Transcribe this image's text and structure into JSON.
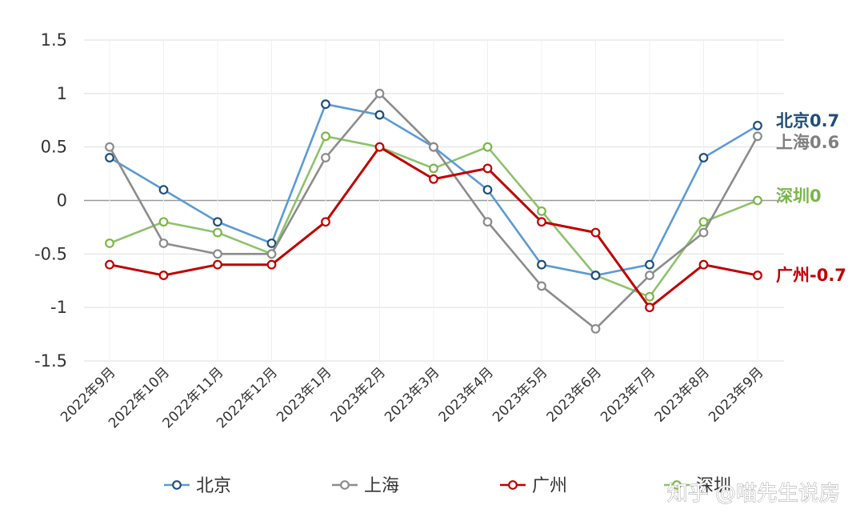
{
  "chart_data": {
    "type": "line",
    "categories": [
      "2022年9月",
      "2022年10月",
      "2022年11月",
      "2022年12月",
      "2023年1月",
      "2023年2月",
      "2023年3月",
      "2023年4月",
      "2023年5月",
      "2023年6月",
      "2023年7月",
      "2023年8月",
      "2023年9月"
    ],
    "ylim": [
      -1.5,
      1.5
    ],
    "yticks": [
      {
        "value": 1.5,
        "label": "1.5"
      },
      {
        "value": 1,
        "label": "1"
      },
      {
        "value": 0.5,
        "label": "0.5"
      },
      {
        "value": 0,
        "label": "0"
      },
      {
        "value": -0.5,
        "label": "-0.5"
      },
      {
        "value": -1,
        "label": "-1"
      },
      {
        "value": -1.5,
        "label": "-1.5"
      }
    ],
    "grid": true,
    "legend_position": "bottom",
    "series": [
      {
        "name": "北京",
        "color": "#5b9bd5",
        "marker_color": "#1f4e79",
        "end_label": "北京0.7",
        "end_label_color": "#1f4e79",
        "values": [
          0.4,
          0.1,
          -0.2,
          -0.4,
          0.9,
          0.8,
          0.5,
          0.1,
          -0.6,
          -0.7,
          -0.6,
          0.4,
          0.7
        ]
      },
      {
        "name": "上海",
        "color": "#8c8c8c",
        "marker_color": "#8c8c8c",
        "end_label": "上海0.6",
        "end_label_color": "#808080",
        "values": [
          0.5,
          -0.4,
          -0.5,
          -0.5,
          0.4,
          1.0,
          0.5,
          -0.2,
          -0.8,
          -1.2,
          -0.7,
          -0.3,
          0.6
        ]
      },
      {
        "name": "广州",
        "color": "#c00000",
        "marker_color": "#c00000",
        "end_label": "广州-0.7",
        "end_label_color": "#c00000",
        "values": [
          -0.6,
          -0.7,
          -0.6,
          -0.6,
          -0.2,
          0.5,
          0.2,
          0.3,
          -0.2,
          -0.3,
          -1.0,
          -0.6,
          -0.7
        ]
      },
      {
        "name": "深圳",
        "color": "#8dc26b",
        "marker_color": "#7ab648",
        "end_label": "深圳0",
        "end_label_color": "#7ab648",
        "values": [
          -0.4,
          -0.2,
          -0.3,
          -0.5,
          0.6,
          0.5,
          0.3,
          0.5,
          -0.1,
          -0.7,
          -0.9,
          -0.2,
          0.0
        ]
      }
    ]
  },
  "watermark": "知乎 @喵先生说房"
}
